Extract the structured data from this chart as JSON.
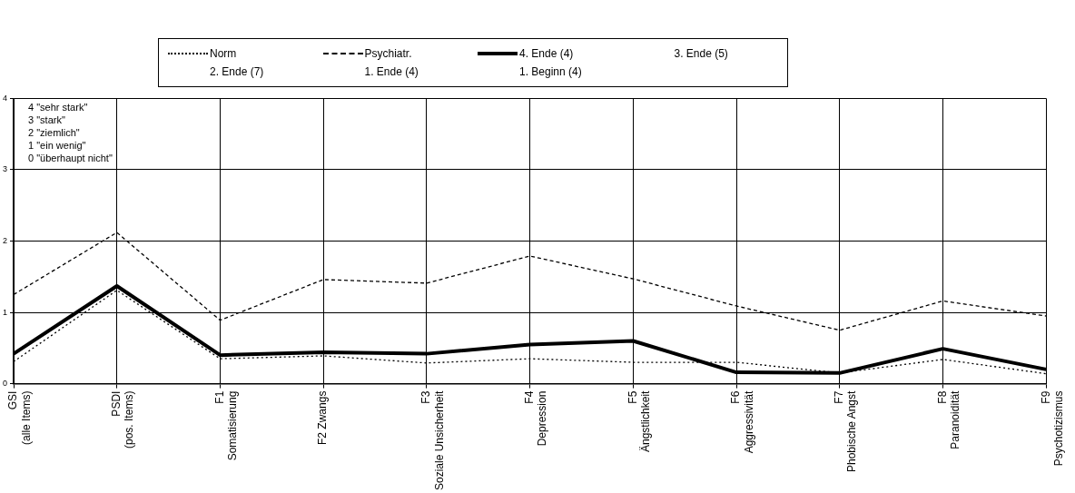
{
  "chart_data": {
    "type": "line",
    "categories": [
      "GSI (alle Items)",
      "PSDI (pos. Items)",
      "F1 Somatisierung",
      "F2 Zwangs",
      "F3 Soziale Unsicherheit",
      "F4 Depression",
      "F5 Ängstlichkeit",
      "F6 Aggressivität",
      "F7 Phobische Angst",
      "F8 Paranoidität",
      "F9 Psychotizismus"
    ],
    "series": [
      {
        "name": "Norm",
        "color": "#000000",
        "line_style": "dotted",
        "values": [
          0.31,
          1.31,
          0.35,
          0.39,
          0.29,
          0.35,
          0.3,
          0.3,
          0.15,
          0.34,
          0.14
        ]
      },
      {
        "name": "Psychiatr.",
        "color": "#000000",
        "line_style": "dashed",
        "values": [
          1.25,
          2.12,
          0.89,
          1.46,
          1.41,
          1.79,
          1.47,
          1.09,
          0.75,
          1.16,
          0.95
        ]
      },
      {
        "name": "4. Ende (4)",
        "color": "#000000",
        "line_style": "solid",
        "values": [
          0.42,
          1.37,
          0.4,
          0.44,
          0.42,
          0.55,
          0.6,
          0.16,
          0.15,
          0.49,
          0.2
        ]
      },
      {
        "name": "3. Ende (5)",
        "line_style": "solid",
        "values": [
          null,
          null,
          null,
          null,
          null,
          null,
          null,
          null,
          null,
          null,
          null
        ]
      },
      {
        "name": "2. Ende (7)",
        "line_style": "solid",
        "values": [
          null,
          null,
          null,
          null,
          null,
          null,
          null,
          null,
          null,
          null,
          null
        ]
      },
      {
        "name": "1. Ende (4)",
        "line_style": "solid",
        "values": [
          null,
          null,
          null,
          null,
          null,
          null,
          null,
          null,
          null,
          null,
          null
        ]
      },
      {
        "name": "1. Beginn (4)",
        "line_style": "solid",
        "values": [
          null,
          null,
          null,
          null,
          null,
          null,
          null,
          null,
          null,
          null,
          null
        ]
      }
    ],
    "ylim": [
      0,
      4
    ],
    "yticks": [
      0,
      1,
      2,
      3,
      4
    ],
    "grid": true,
    "legend": "top",
    "marker": "none",
    "annotations": [
      "4 \"sehr stark\"",
      "3 \"stark\"",
      "2 \"ziemlich\"",
      "1 \"ein wenig\"",
      "0 \"überhaupt nicht\""
    ]
  }
}
